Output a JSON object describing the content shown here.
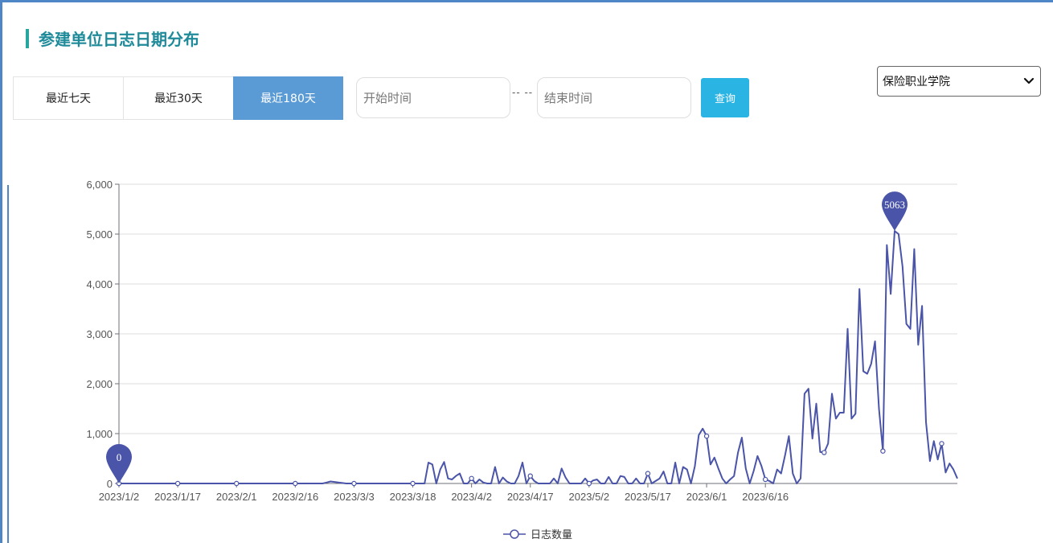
{
  "header": {
    "title": "参建单位日志日期分布"
  },
  "tabs": [
    {
      "label": "最近七天",
      "active": false
    },
    {
      "label": "最近30天",
      "active": false
    },
    {
      "label": "最近180天",
      "active": true
    }
  ],
  "filters": {
    "start_placeholder": "开始时间",
    "separator": "-- --",
    "end_placeholder": "结束时间",
    "query_label": "查询",
    "unit_selected": "保险职业学院"
  },
  "colors": {
    "accent": "#5b9bd5",
    "series": "#4a54a8",
    "title": "#1f8b9a",
    "query": "#29b4e4"
  },
  "chart_data": {
    "type": "line",
    "series": [
      {
        "name": "日志数量",
        "x_start": "2023/1/2",
        "values": [
          0,
          0,
          0,
          0,
          0,
          0,
          0,
          0,
          0,
          0,
          0,
          0,
          0,
          0,
          0,
          0,
          0,
          0,
          0,
          0,
          0,
          0,
          0,
          0,
          0,
          0,
          0,
          0,
          0,
          0,
          0,
          0,
          0,
          0,
          0,
          0,
          0,
          0,
          0,
          0,
          0,
          0,
          0,
          0,
          0,
          0,
          0,
          0,
          0,
          0,
          0,
          0,
          0,
          20,
          40,
          30,
          20,
          10,
          0,
          0,
          0,
          0,
          0,
          0,
          0,
          0,
          0,
          0,
          0,
          0,
          0,
          0,
          0,
          0,
          0,
          0,
          0,
          0,
          0,
          420,
          380,
          0,
          280,
          430,
          100,
          80,
          150,
          200,
          0,
          0,
          100,
          0,
          80,
          20,
          0,
          0,
          330,
          0,
          120,
          40,
          0,
          0,
          150,
          420,
          0,
          150,
          50,
          0,
          0,
          0,
          0,
          100,
          0,
          300,
          120,
          0,
          0,
          0,
          0,
          100,
          0,
          60,
          80,
          0,
          0,
          130,
          0,
          0,
          150,
          130,
          0,
          0,
          100,
          0,
          0,
          200,
          0,
          50,
          100,
          240,
          0,
          0,
          420,
          0,
          330,
          280,
          0,
          350,
          970,
          1100,
          950,
          380,
          520,
          300,
          100,
          0,
          80,
          150,
          620,
          920,
          300,
          0,
          250,
          550,
          350,
          80,
          50,
          0,
          280,
          200,
          560,
          950,
          200,
          0,
          100,
          1800,
          1900,
          900,
          1600,
          630,
          620,
          800,
          1800,
          1300,
          1420,
          1420,
          3100,
          1300,
          1400,
          3900,
          2250,
          2200,
          2400,
          2850,
          1500,
          650,
          4780,
          3800,
          5063,
          5000,
          4350,
          3200,
          3100,
          4700,
          2780,
          3560,
          1230,
          450,
          850,
          480,
          800,
          220,
          400,
          280,
          100
        ],
        "peak": {
          "label": "5063",
          "value": 5063
        },
        "min": {
          "label": "0",
          "value": 0
        }
      }
    ],
    "x_tick_labels": [
      "2023/1/2",
      "2023/1/17",
      "2023/2/1",
      "2023/2/16",
      "2023/3/3",
      "2023/3/18",
      "2023/4/2",
      "2023/4/17",
      "2023/5/2",
      "2023/5/17",
      "2023/6/1",
      "2023/6/16"
    ],
    "y_tick_labels": [
      "0",
      "1,000",
      "2,000",
      "3,000",
      "4,000",
      "5,000",
      "6,000"
    ],
    "ylim": [
      0,
      6000
    ],
    "xlabel": "",
    "ylabel": "",
    "grid": true,
    "legend": "bottom-center"
  }
}
